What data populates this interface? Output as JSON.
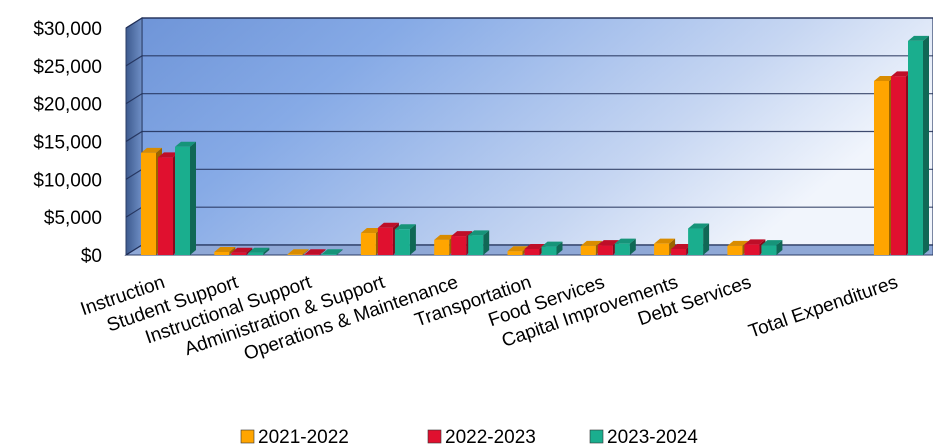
{
  "chart_data": {
    "type": "bar",
    "title": "",
    "xlabel": "",
    "ylabel": "",
    "ylim": [
      0,
      30000
    ],
    "yticks": [
      "$0",
      "$5,000",
      "$10,000",
      "$15,000",
      "$20,000",
      "$25,000",
      "$30,000"
    ],
    "ytick_values": [
      0,
      5000,
      10000,
      15000,
      20000,
      25000,
      30000
    ],
    "categories": [
      "Instruction",
      "Student Support",
      "Instructional Support",
      "Administration & Support",
      "Operations & Maintenance",
      "Transportation",
      "Food Services",
      "Capital Improvements",
      "Debt Services",
      "",
      "Total Expenditures"
    ],
    "series": [
      {
        "name": "2021-2022",
        "color": "#FFA500",
        "values": [
          13500,
          400,
          100,
          2900,
          2000,
          500,
          1200,
          1500,
          1200,
          null,
          23000
        ]
      },
      {
        "name": "2022-2023",
        "color": "#E0102F",
        "values": [
          12900,
          300,
          100,
          3600,
          2500,
          800,
          1300,
          800,
          1400,
          null,
          23600
        ]
      },
      {
        "name": "2023-2024",
        "color": "#1AAE8E",
        "values": [
          14300,
          300,
          100,
          3400,
          2600,
          1100,
          1500,
          3500,
          1300,
          null,
          28300
        ]
      }
    ],
    "grid": true,
    "legend_position": "bottom"
  }
}
